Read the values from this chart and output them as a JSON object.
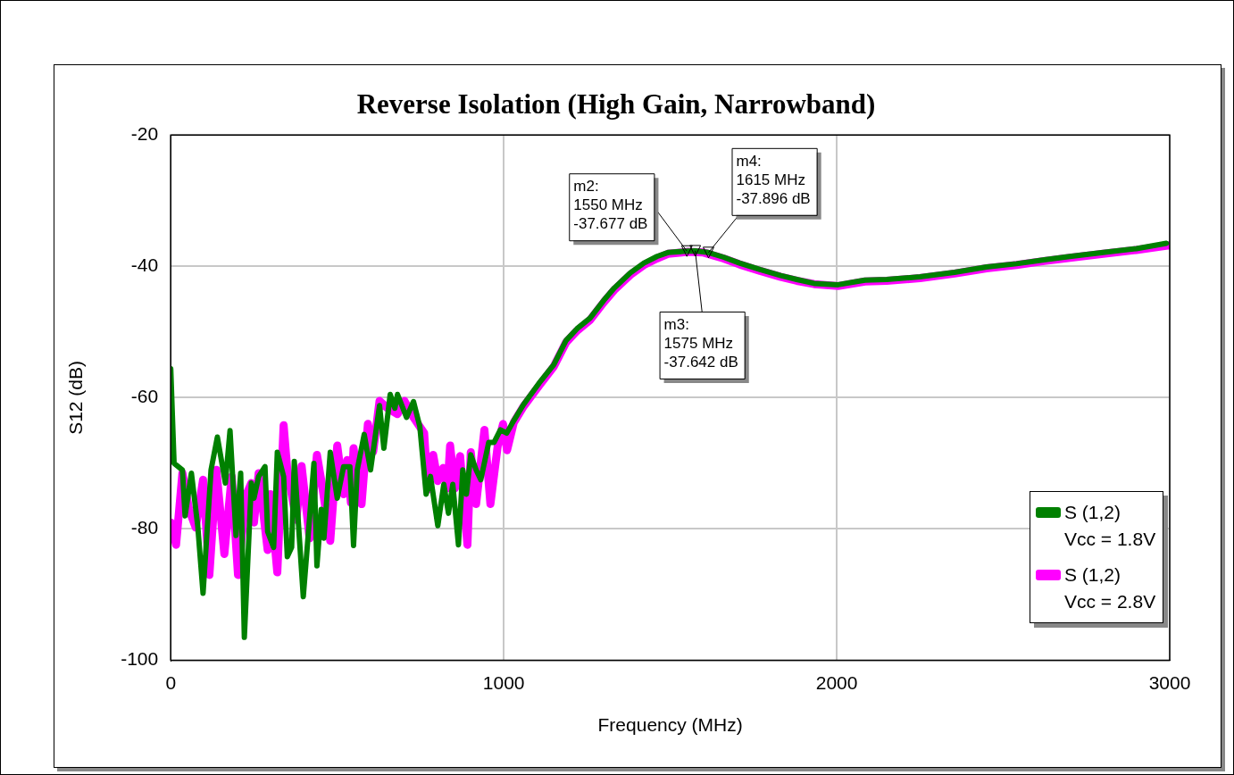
{
  "chart_data": {
    "type": "line",
    "title": "Reverse Isolation (High Gain, Narrowband)",
    "xlabel": "Frequency (MHz)",
    "ylabel": "S12 (dB)",
    "xlim": [
      0,
      3000
    ],
    "xticks": [
      0,
      1000,
      2000,
      3000
    ],
    "ylim": [
      -100,
      -20
    ],
    "yticks": [
      -100,
      -80,
      -60,
      -40,
      -20
    ],
    "grid": true,
    "legend": "bottom right",
    "line_style": "solid",
    "series": [
      {
        "name": "S (1,2)\nVcc = 1.8V",
        "color": "#008000",
        "x": [
          0,
          10,
          35,
          43,
          62,
          81,
          97,
          121,
          140,
          164,
          178,
          196,
          210,
          221,
          242,
          250,
          264,
          283,
          291,
          309,
          320,
          339,
          350,
          363,
          371,
          398,
          430,
          439,
          452,
          460,
          479,
          500,
          519,
          538,
          549,
          560,
          581,
          600,
          627,
          640,
          659,
          673,
          681,
          708,
          729,
          748,
          767,
          780,
          802,
          820,
          834,
          847,
          864,
          877,
          888,
          901,
          917,
          931,
          955,
          971,
          990,
          1009,
          1030,
          1060,
          1106,
          1150,
          1187,
          1220,
          1259,
          1300,
          1332,
          1380,
          1421,
          1460,
          1493,
          1550,
          1575,
          1615,
          1660,
          1708,
          1770,
          1832,
          1880,
          1932,
          2004,
          2085,
          2150,
          2250,
          2354,
          2450,
          2540,
          2623,
          2700,
          2800,
          2900,
          2990
        ],
        "values": [
          -55.6,
          -70,
          -71,
          -78,
          -71.5,
          -79.5,
          -89.8,
          -71,
          -66,
          -73,
          -65,
          -81,
          -71.5,
          -96.5,
          -73,
          -75.3,
          -72,
          -70.5,
          -80.4,
          -82.8,
          -68.3,
          -72,
          -84.2,
          -82.8,
          -69.7,
          -90.3,
          -70,
          -85.6,
          -77,
          -81.4,
          -68.3,
          -75.3,
          -70.5,
          -70.5,
          -82.5,
          -71,
          -65.6,
          -71,
          -61.2,
          -67.7,
          -59.5,
          -61.6,
          -59.5,
          -63,
          -60.6,
          -64.4,
          -74.7,
          -72,
          -79.5,
          -73.2,
          -77.6,
          -73.2,
          -82.4,
          -71,
          -74.7,
          -68.7,
          -71,
          -72.5,
          -66.8,
          -66.8,
          -64.9,
          -65.4,
          -63.5,
          -61,
          -57.8,
          -55,
          -51.3,
          -49.5,
          -47.9,
          -45.2,
          -43.3,
          -41,
          -39.5,
          -38.5,
          -37.9,
          -37.677,
          -37.642,
          -37.896,
          -38.6,
          -39.5,
          -40.5,
          -41.4,
          -42,
          -42.6,
          -42.8,
          -42.1,
          -42,
          -41.6,
          -40.9,
          -40.1,
          -39.6,
          -39,
          -38.5,
          -37.9,
          -37.3,
          -36.5
        ]
      },
      {
        "name": "S (1,2)\nVcc = 2.8V",
        "color": "#ff00ff",
        "x": [
          0,
          16,
          35,
          55,
          75,
          97,
          116,
          137,
          161,
          183,
          202,
          225,
          242,
          250,
          264,
          291,
          299,
          320,
          339,
          350,
          377,
          393,
          417,
          439,
          455,
          479,
          500,
          519,
          530,
          541,
          549,
          573,
          592,
          608,
          627,
          651,
          681,
          702,
          729,
          761,
          772,
          788,
          802,
          818,
          831,
          839,
          853,
          869,
          891,
          901,
          917,
          942,
          960,
          982,
          998,
          1010,
          1030,
          1060,
          1106,
          1150,
          1187,
          1220,
          1259,
          1300,
          1332,
          1380,
          1421,
          1460,
          1493,
          1550,
          1600,
          1660,
          1708,
          1770,
          1832,
          1880,
          1932,
          2004,
          2085,
          2150,
          2250,
          2354,
          2450,
          2540,
          2623,
          2700,
          2800,
          2900,
          3000
        ],
        "values": [
          -79,
          -82.4,
          -71.5,
          -77,
          -79.8,
          -72.5,
          -87,
          -71,
          -83.8,
          -72,
          -87,
          -75,
          -73,
          -79,
          -71.5,
          -83.2,
          -74.7,
          -86.6,
          -64.2,
          -71,
          -78.6,
          -70.4,
          -81.4,
          -68.7,
          -73.5,
          -81.8,
          -67.3,
          -74.7,
          -69.5,
          -76,
          -67.7,
          -76.2,
          -64,
          -68.2,
          -60.5,
          -61.6,
          -62.5,
          -60.5,
          -63,
          -65.4,
          -74,
          -68.7,
          -72.7,
          -70.7,
          -73.8,
          -67.3,
          -73.8,
          -68.9,
          -82.4,
          -68.3,
          -76.2,
          -64.9,
          -76.2,
          -67.3,
          -64,
          -68,
          -63.8,
          -61.3,
          -58.2,
          -55.3,
          -51.6,
          -49.8,
          -48.2,
          -45.5,
          -43.6,
          -41.3,
          -39.8,
          -38.8,
          -38.1,
          -37.8,
          -37.9,
          -38.8,
          -39.7,
          -40.7,
          -41.6,
          -42.2,
          -42.7,
          -43,
          -42.3,
          -42.2,
          -41.8,
          -41.1,
          -40.3,
          -39.8,
          -39.2,
          -38.7,
          -38.1,
          -37.5,
          -36.8
        ]
      }
    ],
    "annotations": [
      {
        "text": "m2:\n1550 MHz\n-37.677 dB",
        "x": 1550,
        "y": -37.677
      },
      {
        "text": "m3:\n1575 MHz\n-37.642 dB",
        "x": 1575,
        "y": -37.642
      },
      {
        "text": "m4:\n1615 MHz\n-37.896 dB",
        "x": 1615,
        "y": -37.896
      }
    ]
  }
}
